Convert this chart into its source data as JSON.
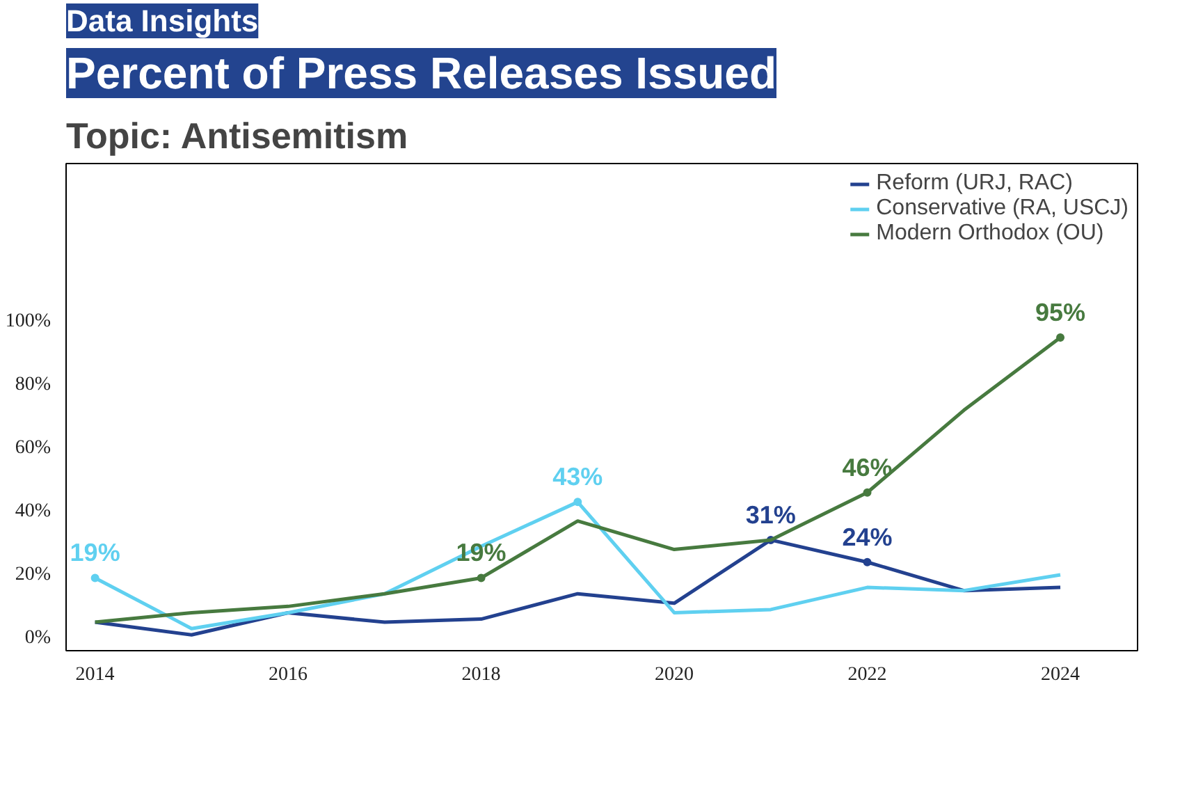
{
  "chart_data": {
    "type": "line",
    "title": "Percent of Press Releases Issued",
    "subtitle": "Topic: Antisemitism",
    "annotations": [
      "Data Insights"
    ],
    "x": [
      2014,
      2015,
      2016,
      2017,
      2018,
      2019,
      2020,
      2021,
      2022,
      2023,
      2024
    ],
    "series": [
      {
        "name": "Reform (URJ, RAC)",
        "color": "#23418f",
        "values": [
          5,
          1,
          8,
          5,
          6,
          14,
          11,
          31,
          24,
          15,
          16
        ],
        "value_labels": [
          null,
          null,
          null,
          null,
          null,
          null,
          null,
          "31%",
          "24%",
          null,
          null
        ]
      },
      {
        "name": "Conservative (RA, USCJ)",
        "color": "#5fd0f0",
        "values": [
          19,
          3,
          8,
          14,
          29,
          43,
          8,
          9,
          16,
          15,
          20
        ],
        "value_labels": [
          "19%",
          null,
          null,
          null,
          null,
          "43%",
          null,
          null,
          null,
          null,
          null
        ]
      },
      {
        "name": "Modern Orthodox (OU)",
        "color": "#477a3f",
        "values": [
          5,
          8,
          10,
          14,
          19,
          37,
          28,
          31,
          46,
          72,
          95
        ],
        "value_labels": [
          null,
          null,
          null,
          null,
          "19%",
          null,
          null,
          null,
          "46%",
          null,
          "95%"
        ]
      }
    ],
    "xlim": [
      2013.7,
      2024.8
    ],
    "xticks": [
      2014,
      2016,
      2018,
      2020,
      2022,
      2024
    ],
    "ylim": [
      -4,
      150
    ],
    "yticks": [
      {
        "value": 0,
        "label": "0%"
      },
      {
        "value": 20,
        "label": "20%"
      },
      {
        "value": 40,
        "label": "40%"
      },
      {
        "value": 60,
        "label": "60%"
      },
      {
        "value": 80,
        "label": "80%"
      },
      {
        "value": 100,
        "label": "100%"
      }
    ],
    "grid": false,
    "legend": "top right",
    "marker": "none",
    "line_style": "solid"
  }
}
